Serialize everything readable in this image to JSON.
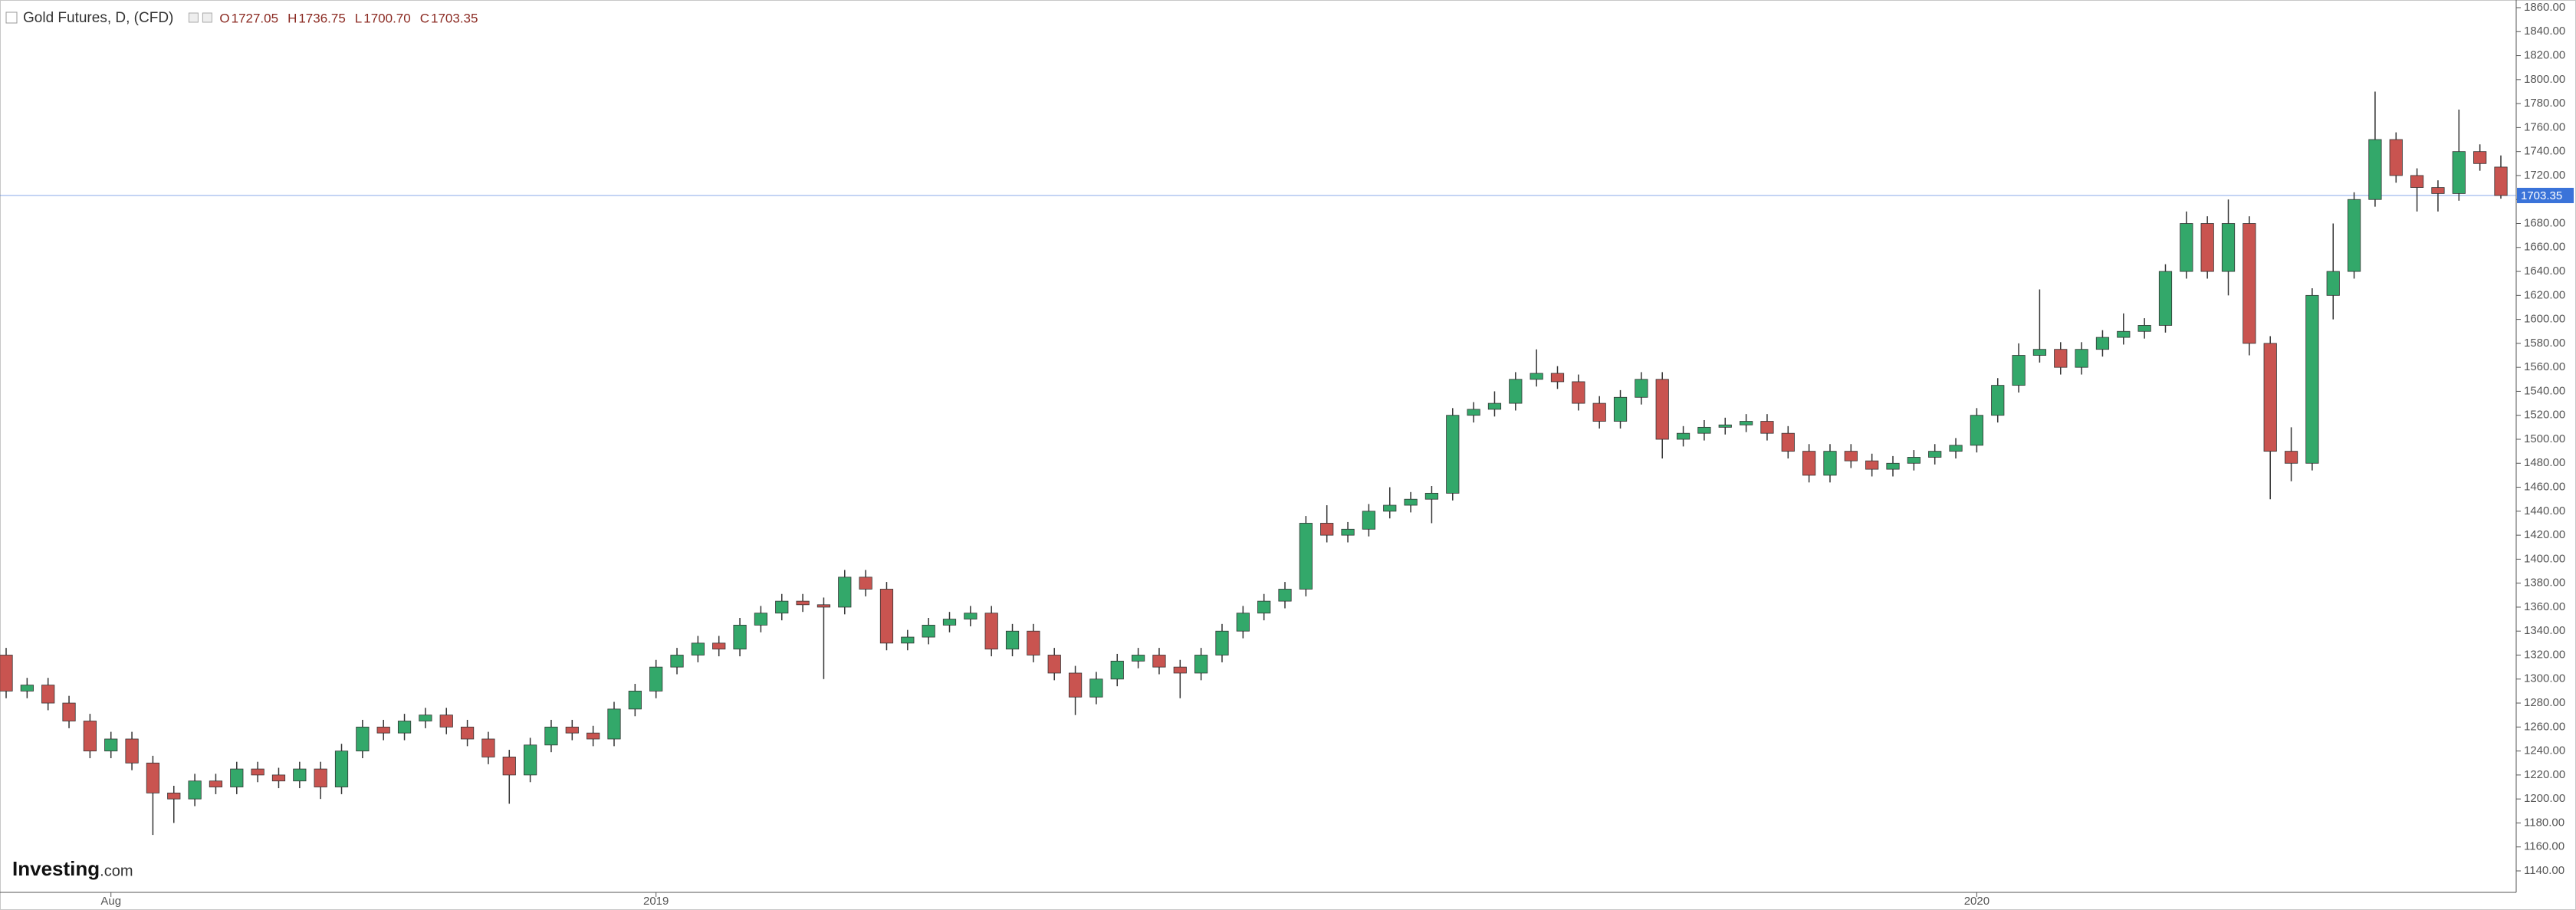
{
  "chart_data": {
    "type": "candlestick",
    "title": "Gold Futures, D, (CFD)",
    "legend_items": [
      {
        "prefix": "O",
        "value": "1727.05"
      },
      {
        "prefix": "H",
        "value": "1736.75"
      },
      {
        "prefix": "L",
        "value": "1700.70"
      },
      {
        "prefix": "C",
        "value": "1703.35"
      }
    ],
    "logo": {
      "name": "Investing",
      "suffix": ".com"
    },
    "up_color": "#33a86a",
    "down_color": "#c95450",
    "last_price": {
      "value": 1703.35,
      "label": "1703.35"
    },
    "last_price_color": "#3a73d9",
    "categories": [
      null,
      null,
      null,
      null,
      null,
      "Aug",
      null,
      null,
      null,
      null,
      null,
      null,
      null,
      null,
      null,
      null,
      null,
      null,
      null,
      null,
      null,
      null,
      null,
      null,
      null,
      null,
      null,
      null,
      null,
      null,
      null,
      "2019",
      null,
      null,
      null,
      null,
      null,
      null,
      null,
      null,
      null,
      null,
      null,
      null,
      null,
      null,
      null,
      null,
      null,
      null,
      null,
      null,
      null,
      null,
      null,
      null,
      null,
      null,
      null,
      null,
      null,
      null,
      null,
      null,
      null,
      null,
      null,
      null,
      null,
      null,
      null,
      null,
      null,
      null,
      null,
      null,
      null,
      null,
      null,
      null,
      null,
      null,
      null,
      null,
      null,
      null,
      null,
      null,
      null,
      null,
      null,
      null,
      null,
      null,
      "2020",
      null,
      null,
      null,
      null,
      null,
      null,
      null,
      null,
      null,
      null,
      null,
      null,
      null,
      null,
      null,
      null,
      null,
      null,
      null,
      null,
      null,
      null,
      null,
      null,
      null
    ],
    "open": [
      1320,
      1290,
      1295,
      1280,
      1265,
      1240,
      1250,
      1230,
      1205,
      1200,
      1215,
      1210,
      1225,
      1220,
      1215,
      1225,
      1210,
      1240,
      1260,
      1255,
      1265,
      1270,
      1260,
      1250,
      1235,
      1220,
      1245,
      1260,
      1255,
      1250,
      1275,
      1290,
      1310,
      1320,
      1330,
      1325,
      1345,
      1355,
      1365,
      1362,
      1360,
      1385,
      1375,
      1330,
      1335,
      1345,
      1350,
      1355,
      1325,
      1340,
      1320,
      1305,
      1285,
      1300,
      1315,
      1320,
      1310,
      1305,
      1320,
      1340,
      1355,
      1365,
      1375,
      1430,
      1420,
      1425,
      1440,
      1445,
      1450,
      1455,
      1520,
      1525,
      1530,
      1550,
      1555,
      1548,
      1530,
      1515,
      1535,
      1550,
      1500,
      1505,
      1510,
      1512,
      1515,
      1505,
      1490,
      1470,
      1490,
      1482,
      1475,
      1480,
      1485,
      1490,
      1495,
      1520,
      1545,
      1570,
      1575,
      1560,
      1575,
      1585,
      1590,
      1595,
      1640,
      1680,
      1640,
      1680,
      1580,
      1490,
      1480,
      1620,
      1640,
      1700,
      1750,
      1720,
      1710,
      1705,
      1740,
      1727.05
    ],
    "high": [
      1326,
      1301,
      1301,
      1286,
      1271,
      1256,
      1256,
      1236,
      1211,
      1221,
      1221,
      1231,
      1231,
      1226,
      1231,
      1231,
      1246,
      1266,
      1266,
      1271,
      1276,
      1276,
      1266,
      1256,
      1241,
      1251,
      1266,
      1266,
      1261,
      1281,
      1296,
      1316,
      1326,
      1336,
      1336,
      1351,
      1361,
      1371,
      1371,
      1368,
      1391,
      1391,
      1381,
      1341,
      1351,
      1356,
      1361,
      1361,
      1346,
      1346,
      1326,
      1311,
      1306,
      1321,
      1326,
      1326,
      1316,
      1326,
      1346,
      1361,
      1371,
      1381,
      1436,
      1445,
      1431,
      1446,
      1460,
      1456,
      1461,
      1526,
      1531,
      1540,
      1556,
      1575,
      1561,
      1554,
      1536,
      1541,
      1556,
      1556,
      1511,
      1516,
      1518,
      1521,
      1521,
      1511,
      1496,
      1496,
      1496,
      1488,
      1486,
      1491,
      1496,
      1501,
      1526,
      1551,
      1580,
      1625,
      1581,
      1581,
      1591,
      1605,
      1601,
      1646,
      1690,
      1686,
      1700,
      1686,
      1586,
      1510,
      1626,
      1680,
      1706,
      1790,
      1756,
      1726,
      1716,
      1775,
      1746,
      1736.75
    ],
    "low": [
      1284,
      1284,
      1274,
      1259,
      1234,
      1234,
      1224,
      1170,
      1180,
      1194,
      1204,
      1204,
      1214,
      1209,
      1209,
      1200,
      1204,
      1234,
      1249,
      1249,
      1259,
      1254,
      1244,
      1229,
      1196,
      1214,
      1239,
      1249,
      1244,
      1244,
      1269,
      1284,
      1304,
      1314,
      1319,
      1319,
      1339,
      1349,
      1356,
      1300,
      1354,
      1369,
      1324,
      1324,
      1329,
      1339,
      1344,
      1319,
      1319,
      1314,
      1299,
      1270,
      1279,
      1294,
      1309,
      1304,
      1284,
      1299,
      1314,
      1334,
      1349,
      1359,
      1369,
      1414,
      1414,
      1419,
      1434,
      1439,
      1430,
      1449,
      1514,
      1519,
      1524,
      1544,
      1542,
      1524,
      1509,
      1509,
      1529,
      1484,
      1494,
      1499,
      1504,
      1506,
      1499,
      1484,
      1464,
      1464,
      1476,
      1469,
      1469,
      1474,
      1479,
      1484,
      1489,
      1514,
      1539,
      1564,
      1554,
      1554,
      1569,
      1579,
      1584,
      1589,
      1634,
      1634,
      1620,
      1570,
      1450,
      1465,
      1474,
      1600,
      1634,
      1694,
      1714,
      1690,
      1690,
      1699,
      1724,
      1700.7
    ],
    "close": [
      1290,
      1295,
      1280,
      1265,
      1240,
      1250,
      1230,
      1205,
      1200,
      1215,
      1210,
      1225,
      1220,
      1215,
      1225,
      1210,
      1240,
      1260,
      1255,
      1265,
      1270,
      1260,
      1250,
      1235,
      1220,
      1245,
      1260,
      1255,
      1250,
      1275,
      1290,
      1310,
      1320,
      1330,
      1325,
      1345,
      1355,
      1365,
      1362,
      1360,
      1385,
      1375,
      1330,
      1335,
      1345,
      1350,
      1355,
      1325,
      1340,
      1320,
      1305,
      1285,
      1300,
      1315,
      1320,
      1310,
      1305,
      1320,
      1340,
      1355,
      1365,
      1375,
      1430,
      1420,
      1425,
      1440,
      1445,
      1450,
      1455,
      1520,
      1525,
      1530,
      1550,
      1555,
      1548,
      1530,
      1515,
      1535,
      1550,
      1500,
      1505,
      1510,
      1512,
      1515,
      1505,
      1490,
      1470,
      1490,
      1482,
      1475,
      1480,
      1485,
      1490,
      1495,
      1520,
      1545,
      1570,
      1575,
      1560,
      1575,
      1585,
      1590,
      1595,
      1640,
      1680,
      1640,
      1680,
      1580,
      1490,
      1480,
      1620,
      1640,
      1700,
      1750,
      1720,
      1710,
      1705,
      1740,
      1730,
      1703.35
    ],
    "ylim": [
      1140,
      1860
    ],
    "yticks": [
      {
        "value": 1140,
        "label": "1140.00"
      },
      {
        "value": 1160,
        "label": "1160.00"
      },
      {
        "value": 1180,
        "label": "1180.00"
      },
      {
        "value": 1200,
        "label": "1200.00"
      },
      {
        "value": 1220,
        "label": "1220.00"
      },
      {
        "value": 1240,
        "label": "1240.00"
      },
      {
        "value": 1260,
        "label": "1260.00"
      },
      {
        "value": 1280,
        "label": "1280.00"
      },
      {
        "value": 1300,
        "label": "1300.00"
      },
      {
        "value": 1320,
        "label": "1320.00"
      },
      {
        "value": 1340,
        "label": "1340.00"
      },
      {
        "value": 1360,
        "label": "1360.00"
      },
      {
        "value": 1380,
        "label": "1380.00"
      },
      {
        "value": 1400,
        "label": "1400.00"
      },
      {
        "value": 1420,
        "label": "1420.00"
      },
      {
        "value": 1440,
        "label": "1440.00"
      },
      {
        "value": 1460,
        "label": "1460.00"
      },
      {
        "value": 1480,
        "label": "1480.00"
      },
      {
        "value": 1500,
        "label": "1500.00"
      },
      {
        "value": 1520,
        "label": "1520.00"
      },
      {
        "value": 1540,
        "label": "1540.00"
      },
      {
        "value": 1560,
        "label": "1560.00"
      },
      {
        "value": 1580,
        "label": "1580.00"
      },
      {
        "value": 1600,
        "label": "1600.00"
      },
      {
        "value": 1620,
        "label": "1620.00"
      },
      {
        "value": 1640,
        "label": "1640.00"
      },
      {
        "value": 1660,
        "label": "1660.00"
      },
      {
        "value": 1680,
        "label": "1680.00"
      },
      {
        "value": 1700,
        "label": "1700.00"
      },
      {
        "value": 1720,
        "label": "1720.00"
      },
      {
        "value": 1740,
        "label": "1740.00"
      },
      {
        "value": 1760,
        "label": "1760.00"
      },
      {
        "value": 1780,
        "label": "1780.00"
      },
      {
        "value": 1800,
        "label": "1800.00"
      },
      {
        "value": 1820,
        "label": "1820.00"
      },
      {
        "value": 1840,
        "label": "1840.00"
      },
      {
        "value": 1860,
        "label": "1860.00"
      }
    ],
    "grid": false
  }
}
